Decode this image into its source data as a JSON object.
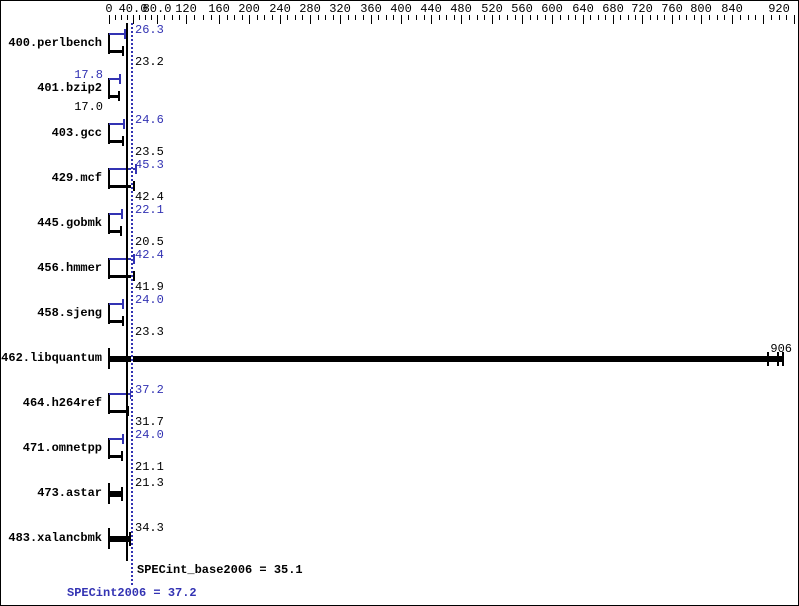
{
  "chart_data": {
    "type": "bar",
    "orientation": "horizontal",
    "description": "SPEC CPU2006 integer benchmark result graph, peak (blue) and base (black) ratio bars per benchmark",
    "colors": {
      "peak_blue": "#3333b3",
      "base_black": "#000000"
    },
    "x_axis": {
      "min": 0,
      "max": 920,
      "major_step": 40,
      "minor_step": 10,
      "tick_labels": [
        {
          "v": 0,
          "label": "0"
        },
        {
          "v": 40,
          "label": "40.0"
        },
        {
          "v": 80,
          "label": "80.0"
        },
        {
          "v": 120,
          "label": "120"
        },
        {
          "v": 160,
          "label": "160"
        },
        {
          "v": 200,
          "label": "200"
        },
        {
          "v": 240,
          "label": "240"
        },
        {
          "v": 280,
          "label": "280"
        },
        {
          "v": 320,
          "label": "320"
        },
        {
          "v": 360,
          "label": "360"
        },
        {
          "v": 400,
          "label": "400"
        },
        {
          "v": 440,
          "label": "440"
        },
        {
          "v": 480,
          "label": "480"
        },
        {
          "v": 520,
          "label": "520"
        },
        {
          "v": 560,
          "label": "560"
        },
        {
          "v": 600,
          "label": "600"
        },
        {
          "v": 640,
          "label": "640"
        },
        {
          "v": 680,
          "label": "680"
        },
        {
          "v": 720,
          "label": "720"
        },
        {
          "v": 760,
          "label": "760"
        },
        {
          "v": 800,
          "label": "800"
        },
        {
          "v": 840,
          "label": "840"
        },
        {
          "v": 920,
          "label": "920"
        }
      ]
    },
    "rows": [
      {
        "label": "400.perlbench",
        "peak": "26.3",
        "base": "23.2"
      },
      {
        "label": "401.bzip2",
        "peak": "17.8",
        "base": "17.0",
        "value_labels_side": "left"
      },
      {
        "label": "403.gcc",
        "peak": "24.6",
        "base": "23.5"
      },
      {
        "label": "429.mcf",
        "peak": "45.3",
        "base": "42.4"
      },
      {
        "label": "445.gobmk",
        "peak": "22.1",
        "base": "20.5"
      },
      {
        "label": "456.hmmer",
        "peak": "42.4",
        "base": "41.9"
      },
      {
        "label": "458.sjeng",
        "peak": "24.0",
        "base": "23.3"
      },
      {
        "label": "462.libquantum",
        "value": "906",
        "style": "merged",
        "label_at_bar_end": true
      },
      {
        "label": "464.h264ref",
        "peak": "37.2",
        "base": "31.7"
      },
      {
        "label": "471.omnetpp",
        "peak": "24.0",
        "base": "21.1"
      },
      {
        "label": "473.astar",
        "value": "21.3",
        "style": "merged"
      },
      {
        "label": "483.xalancbmk",
        "value": "34.3",
        "style": "merged"
      }
    ],
    "summary": {
      "base_text": "SPECint_base2006 = 35.1",
      "peak_text": "SPECint2006 = 37.2",
      "base_value": 35.1,
      "peak_value": 37.2
    }
  }
}
